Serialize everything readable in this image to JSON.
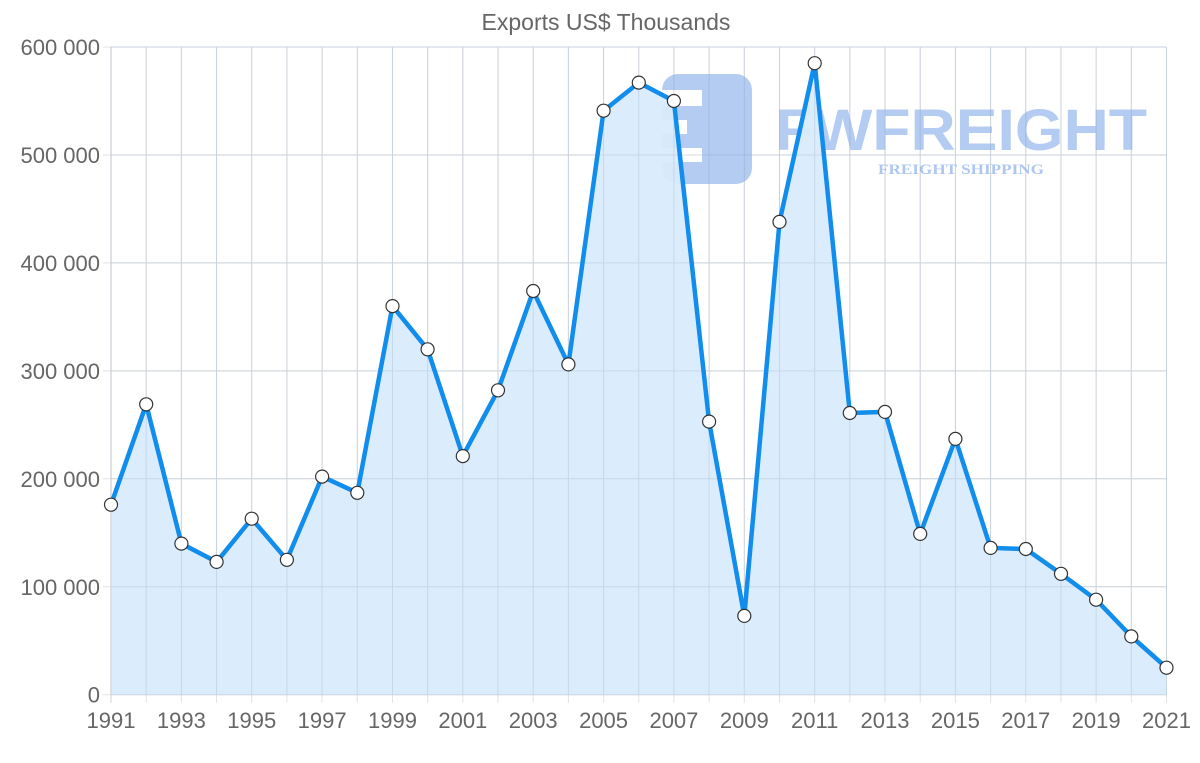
{
  "chart_data": {
    "type": "area",
    "title": "Exports US$ Thousands",
    "xlabel": "",
    "ylabel": "",
    "x": [
      1991,
      1992,
      1993,
      1994,
      1995,
      1996,
      1997,
      1998,
      1999,
      2000,
      2001,
      2002,
      2003,
      2004,
      2005,
      2006,
      2007,
      2008,
      2009,
      2010,
      2011,
      2012,
      2013,
      2014,
      2015,
      2016,
      2017,
      2018,
      2019,
      2020,
      2021
    ],
    "series": [
      {
        "name": "Exports US$ Thousands",
        "values": [
          176000,
          269000,
          140000,
          123000,
          163000,
          125000,
          202000,
          187000,
          360000,
          320000,
          221000,
          282000,
          374000,
          306000,
          541000,
          567000,
          550000,
          253000,
          73000,
          438000,
          585000,
          261000,
          262000,
          149000,
          237000,
          136000,
          135000,
          112000,
          88000,
          54000,
          25000
        ]
      }
    ],
    "ylim": [
      0,
      600000
    ],
    "y_ticks": [
      0,
      100000,
      200000,
      300000,
      400000,
      500000,
      600000
    ],
    "y_tick_labels": [
      "0",
      "100 000",
      "200 000",
      "300 000",
      "400 000",
      "500 000",
      "600 000"
    ],
    "x_tick_labels": [
      "1991",
      "1993",
      "1995",
      "1997",
      "1999",
      "2001",
      "2003",
      "2005",
      "2007",
      "2009",
      "2011",
      "2013",
      "2015",
      "2017",
      "2019",
      "2021"
    ],
    "grid": true,
    "legend": "none",
    "colors": {
      "line": "#118ded",
      "fill": "#d9ebfc",
      "point_fill": "#ffffff",
      "point_stroke": "#333333",
      "grid": "#e2e2e2",
      "text": "#666666"
    }
  },
  "watermark": {
    "brand": "FWFREIGHT",
    "tagline": "FREIGHT SHIPPING",
    "logo_icon": "fwfreight-logo-icon",
    "color": "#7aa3e8"
  }
}
